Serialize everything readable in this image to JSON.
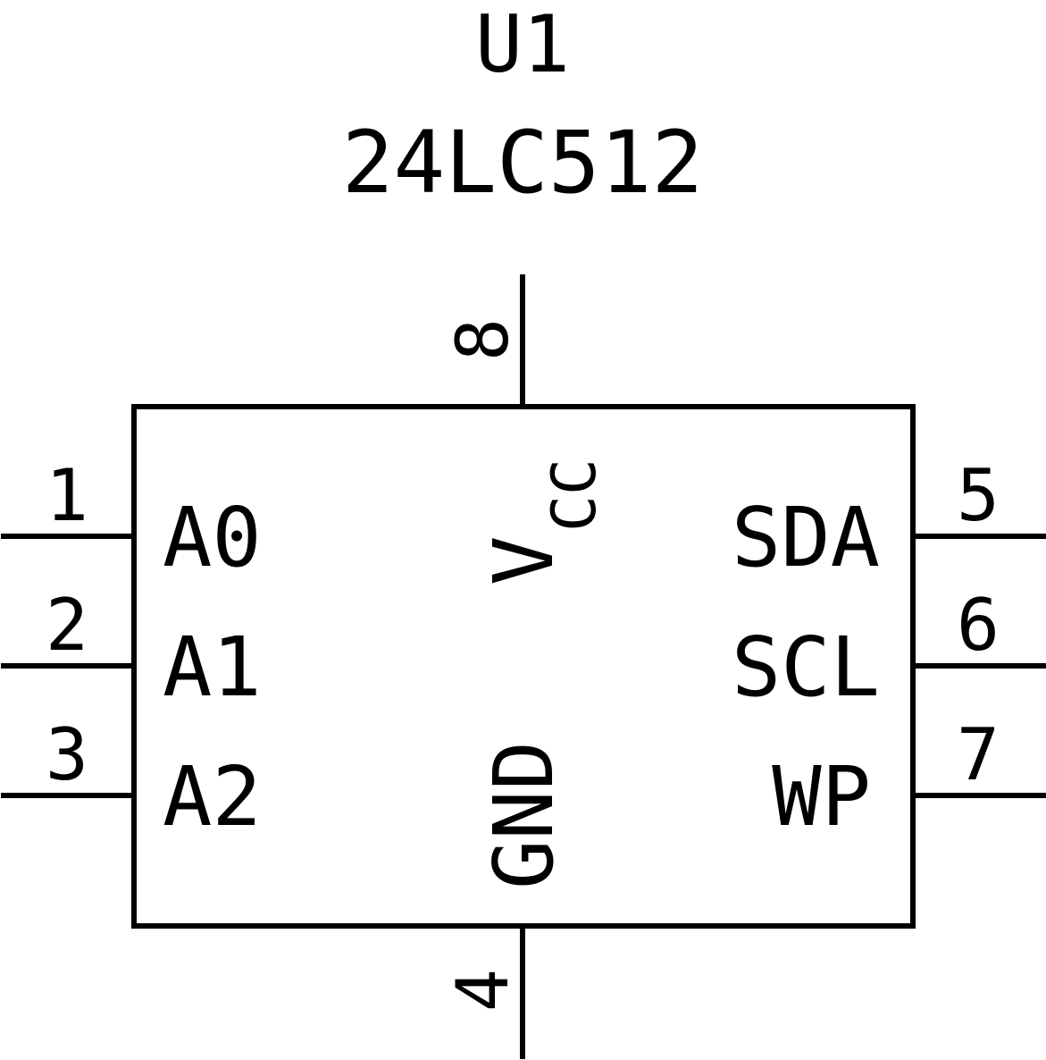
{
  "component": {
    "reference": "U1",
    "part": "24LC512"
  },
  "pins": {
    "p1": {
      "number": "1",
      "name": "A0"
    },
    "p2": {
      "number": "2",
      "name": "A1"
    },
    "p3": {
      "number": "3",
      "name": "A2"
    },
    "p4": {
      "number": "4",
      "name": "GND"
    },
    "p5": {
      "number": "5",
      "name": "SDA"
    },
    "p6": {
      "number": "6",
      "name": "SCL"
    },
    "p7": {
      "number": "7",
      "name": "WP"
    },
    "p8": {
      "number": "8",
      "name_main": "V",
      "name_sub": "CC"
    }
  },
  "colors": {
    "stroke": "#000000",
    "background": "#ffffff"
  }
}
